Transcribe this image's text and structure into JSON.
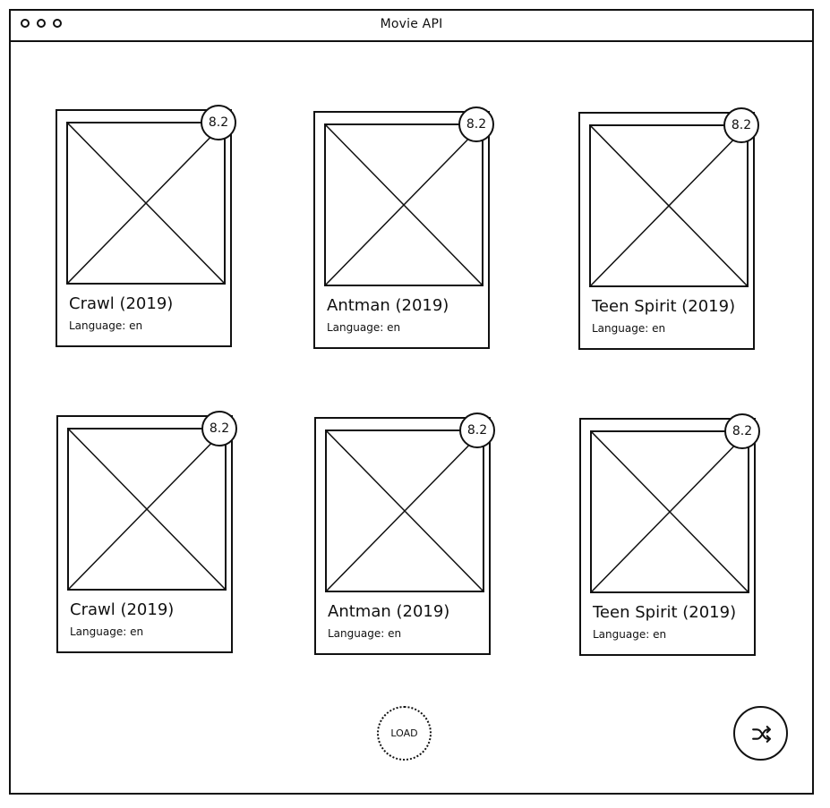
{
  "window": {
    "title": "Movie API"
  },
  "movies": [
    {
      "title": "Crawl (2019)",
      "language": "Language: en",
      "rating": "8.2"
    },
    {
      "title": "Antman (2019)",
      "language": "Language: en",
      "rating": "8.2"
    },
    {
      "title": "Teen Spirit (2019)",
      "language": "Language: en",
      "rating": "8.2"
    },
    {
      "title": "Crawl (2019)",
      "language": "Language: en",
      "rating": "8.2"
    },
    {
      "title": "Antman (2019)",
      "language": "Language: en",
      "rating": "8.2"
    },
    {
      "title": "Teen Spirit (2019)",
      "language": "Language: en",
      "rating": "8.2"
    }
  ],
  "actions": {
    "load_label": "LOAD",
    "shuffle_icon": "shuffle-icon"
  }
}
